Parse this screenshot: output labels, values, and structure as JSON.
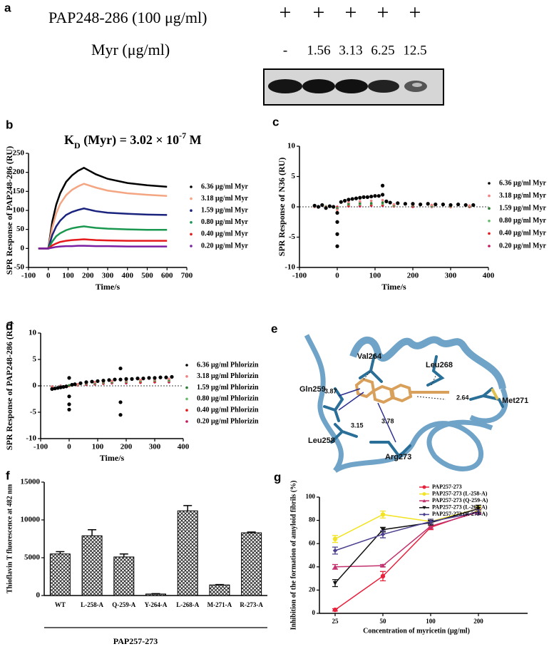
{
  "panel_a": {
    "label": "a",
    "rows": [
      {
        "label": "PAP248-286 (100 μg/ml)",
        "cells": [
          "+",
          "+",
          "+",
          "+",
          "+"
        ]
      },
      {
        "label": "Myr (μg/ml)",
        "cells": [
          "-",
          1.56,
          3.13,
          6.25,
          12.5
        ]
      }
    ]
  },
  "panel_e": {
    "label": "e",
    "residues": [
      "Val264",
      "Leu268",
      "Gln259",
      "Met271",
      "Leu258",
      "Arg273"
    ],
    "distances": [
      3.87,
      3.15,
      3.78,
      2.64
    ]
  },
  "chart_data": [
    {
      "type": "line",
      "label": "b",
      "title": {
        "k": "K",
        "sub": "D",
        "mid": " (Myr) = 3.02 × 10",
        "sup": "-7",
        "end": " M"
      },
      "x_label": "Time/s",
      "y_label": "SPR Response of PAP248-286 (RU)",
      "xlim": [
        -100,
        700
      ],
      "xticks": [
        -100,
        0,
        100,
        200,
        300,
        400,
        500,
        600,
        700
      ],
      "ylim": [
        -50,
        250
      ],
      "yticks": [
        -50,
        0,
        50,
        100,
        150,
        200,
        250
      ],
      "x": [
        -50,
        0,
        20,
        40,
        60,
        90,
        120,
        150,
        180,
        240,
        300,
        400,
        500,
        600
      ],
      "series": [
        {
          "name": "6.36 μg/ml Myr",
          "color": "#000000",
          "values": [
            0,
            0,
            70,
            115,
            145,
            175,
            192,
            204,
            212,
            195,
            183,
            172,
            166,
            162
          ]
        },
        {
          "name": "3.18 μg/ml Myr",
          "color": "#f4a582",
          "values": [
            0,
            0,
            55,
            92,
            117,
            140,
            154,
            163,
            170,
            160,
            152,
            145,
            141,
            138
          ]
        },
        {
          "name": "1.59 μg/ml Myr",
          "color": "#1a237e",
          "values": [
            0,
            0,
            35,
            58,
            73,
            88,
            96,
            101,
            105,
            98,
            94,
            91,
            89,
            88
          ]
        },
        {
          "name": "0.80 μg/ml Myr",
          "color": "#1a9850",
          "values": [
            0,
            0,
            18,
            32,
            40,
            48,
            53,
            56,
            58,
            54,
            52,
            50,
            49,
            49
          ]
        },
        {
          "name": "0.40 μg/ml Myr",
          "color": "#e41a1c",
          "values": [
            0,
            0,
            8,
            13,
            17,
            20,
            22,
            23,
            24,
            22,
            21,
            20,
            20,
            20
          ]
        },
        {
          "name": "0.20 μg/ml Myr",
          "color": "#7b1fa2",
          "values": [
            0,
            0,
            2,
            4,
            5,
            6,
            6,
            7,
            7,
            6,
            6,
            5,
            5,
            5
          ]
        }
      ]
    },
    {
      "type": "scatter",
      "label": "c",
      "zero_line": true,
      "x_label": "Time/s",
      "y_label": "SPR Response of N36 (RU)",
      "xlim": [
        -100,
        400
      ],
      "xticks": [
        -100,
        0,
        100,
        200,
        300,
        400
      ],
      "ylim": [
        -10,
        10
      ],
      "yticks": [
        -10,
        -5,
        0,
        5,
        10
      ],
      "series": [
        {
          "name": "6.36 μg/ml Myr",
          "color": "#000000",
          "x": [
            -60,
            -50,
            -40,
            -30,
            -20,
            -10,
            0,
            0,
            0,
            0,
            10,
            20,
            30,
            40,
            50,
            60,
            70,
            80,
            90,
            100,
            110,
            120,
            120,
            130,
            140,
            160,
            180,
            200,
            220,
            240,
            260,
            280,
            300,
            320,
            340,
            360
          ],
          "values": [
            0.2,
            0,
            0.3,
            -0.2,
            0.1,
            0,
            -1,
            -2.5,
            -4.5,
            -6.5,
            0.8,
            1,
            1.2,
            1.3,
            1.4,
            1.5,
            1.6,
            1.6,
            1.7,
            1.8,
            1.8,
            2,
            3.5,
            0.9,
            0.7,
            0.6,
            0.5,
            0.5,
            0.4,
            0.5,
            0.4,
            0.4,
            0.3,
            0.4,
            0.3,
            0.3
          ]
        },
        {
          "name": "3.18 μg/ml Myr",
          "color": "#f08080",
          "x": [
            -60,
            -30,
            0,
            30,
            60,
            90,
            120,
            150,
            200,
            250,
            300,
            350
          ],
          "values": [
            0,
            0,
            -0.5,
            0.8,
            0.9,
            1,
            1.1,
            0.4,
            0.3,
            0.3,
            0.2,
            0.2
          ]
        },
        {
          "name": "1.59 μg/ml Myr",
          "color": "#2e7d32",
          "x": [
            -60,
            -30,
            0,
            30,
            60,
            90,
            120,
            150,
            200,
            250,
            300,
            350
          ],
          "values": [
            0,
            0,
            -0.3,
            0.5,
            0.6,
            0.6,
            0.7,
            0.3,
            0.2,
            0.2,
            0.2,
            0.1
          ]
        },
        {
          "name": "0.80 μg/ml Myr",
          "color": "#66bb6a",
          "x": [
            -60,
            -30,
            0,
            30,
            60,
            90,
            120,
            150,
            200,
            250,
            300,
            350
          ],
          "values": [
            0,
            0.1,
            -0.2,
            0.4,
            0.4,
            0.5,
            0.5,
            0.2,
            0.2,
            0.1,
            0.1,
            0.1
          ]
        },
        {
          "name": "0.40 μg/ml Myr",
          "color": "#e41a1c",
          "x": [
            -60,
            -30,
            0,
            30,
            60,
            90,
            120,
            150,
            200,
            250,
            300,
            350
          ],
          "values": [
            0,
            0,
            -0.1,
            0.2,
            0.3,
            0.3,
            0.3,
            0.1,
            0.1,
            0.1,
            0,
            0
          ]
        },
        {
          "name": "0.20 μg/ml Myr",
          "color": "#c2185b",
          "x": [
            -60,
            -30,
            0,
            30,
            60,
            90,
            120,
            150,
            200,
            250,
            300,
            350
          ],
          "values": [
            0,
            0,
            0,
            0.1,
            0.1,
            0.2,
            0.2,
            0.1,
            0,
            0,
            0,
            0
          ]
        }
      ]
    },
    {
      "type": "scatter",
      "label": "d",
      "zero_line": true,
      "x_label": "Time/s",
      "y_label": "SPR Response of PAP248-286 (RU)",
      "xlim": [
        -100,
        400
      ],
      "xticks": [
        -100,
        0,
        100,
        200,
        300,
        400
      ],
      "ylim": [
        -10,
        10
      ],
      "yticks": [
        -10,
        -5,
        0,
        5,
        10
      ],
      "series": [
        {
          "name": "6.36 μg/ml Phlorizin",
          "color": "#000000",
          "x": [
            -60,
            -50,
            -40,
            -30,
            -20,
            -10,
            0,
            0,
            0,
            0,
            10,
            20,
            40,
            60,
            80,
            100,
            120,
            140,
            160,
            180,
            180,
            180,
            180,
            200,
            220,
            240,
            260,
            280,
            300,
            320,
            340,
            360
          ],
          "values": [
            -0.6,
            -0.5,
            -0.4,
            -0.3,
            -0.2,
            -0.1,
            1.5,
            -2,
            -3.5,
            -4.5,
            0.2,
            0.3,
            0.5,
            0.7,
            0.8,
            0.9,
            1,
            1.1,
            1.2,
            1.2,
            3.3,
            -3.1,
            -5.5,
            1.3,
            1.3,
            1.4,
            1.4,
            1.5,
            1.5,
            1.6,
            1.6,
            1.7
          ]
        },
        {
          "name": "3.18 μg/ml Phlorizin",
          "color": "#f08080",
          "x": [
            -60,
            -30,
            0,
            30,
            60,
            90,
            120,
            150,
            200,
            250,
            300,
            350
          ],
          "values": [
            -0.3,
            -0.2,
            1.5,
            0.3,
            0.5,
            0.7,
            0.8,
            0.9,
            1,
            1.1,
            1.2,
            1.3
          ]
        },
        {
          "name": "1.59 μg/ml Phlorizin",
          "color": "#2e7d32",
          "x": [
            -60,
            -30,
            0,
            30,
            60,
            90,
            120,
            150,
            200,
            250,
            300,
            350
          ],
          "values": [
            -0.4,
            -0.2,
            0.1,
            0.3,
            0.4,
            0.6,
            0.7,
            0.8,
            0.9,
            1,
            1.1,
            1.2
          ]
        },
        {
          "name": "0.80 μg/ml Phlorizin",
          "color": "#66bb6a",
          "x": [
            -60,
            -30,
            0,
            30,
            60,
            90,
            120,
            150,
            200,
            250,
            300,
            350
          ],
          "values": [
            -0.3,
            -0.1,
            0.1,
            0.2,
            0.4,
            0.5,
            0.6,
            0.7,
            0.8,
            0.9,
            1,
            1
          ]
        },
        {
          "name": "0.40 μg/ml Phlorizin",
          "color": "#e41a1c",
          "x": [
            -60,
            -30,
            0,
            30,
            60,
            90,
            120,
            150,
            200,
            250,
            300,
            350
          ],
          "values": [
            -0.2,
            -0.1,
            0,
            0.2,
            0.3,
            0.4,
            0.5,
            0.6,
            0.7,
            0.7,
            0.8,
            0.9
          ]
        },
        {
          "name": "0.20 μg/ml Phlorizin",
          "color": "#c2185b",
          "x": [
            -60,
            -30,
            0,
            30,
            60,
            90,
            120,
            150,
            200,
            250,
            300,
            350
          ],
          "values": [
            -0.2,
            0,
            0,
            0.1,
            0.2,
            0.3,
            0.4,
            0.5,
            0.5,
            0.6,
            0.7,
            0.7
          ]
        }
      ]
    },
    {
      "type": "bar",
      "label": "f",
      "x_label": "PAP257-273",
      "y_label": "Thioflavin T fluorescence at 482 nm",
      "categories": [
        "WT",
        "L-258-A",
        "Q-259-A",
        "Y-264-A",
        "L-268-A",
        "M-271-A",
        "R-273-A"
      ],
      "values": [
        5500,
        7900,
        5100,
        200,
        11200,
        1400,
        8300
      ],
      "errors": [
        300,
        800,
        400,
        50,
        700,
        50,
        100
      ],
      "ylim": [
        0,
        15000
      ],
      "yticks": [
        0,
        5000,
        10000,
        15000
      ]
    },
    {
      "type": "errorline",
      "label": "g",
      "x_label": "Concentration of myricetin (μg/ml)",
      "y_label": "Inhibition of the formation of amyloid fibrils (%)",
      "categories": [
        "25",
        "50",
        "100",
        "200"
      ],
      "ylim": [
        0,
        100
      ],
      "yticks": [
        0,
        20,
        40,
        60,
        80,
        100
      ],
      "series": [
        {
          "name": "PAP257-273",
          "color": "#e8213c",
          "marker": "circle",
          "values": [
            3,
            32,
            74,
            88
          ],
          "errors": [
            1,
            4,
            2,
            2
          ]
        },
        {
          "name": "PAP257-273  (L-258-A)",
          "color": "#f2e424",
          "marker": "circle",
          "values": [
            64,
            85,
            79,
            90
          ],
          "errors": [
            3,
            3,
            2,
            2
          ]
        },
        {
          "name": "PAP257-273  (Q-259-A)",
          "color": "#c2306e",
          "marker": "triangle-up",
          "values": [
            40,
            41,
            75,
            87
          ],
          "errors": [
            2,
            1,
            2,
            2
          ]
        },
        {
          "name": "PAP257-273  (L-268-A)",
          "color": "#111111",
          "marker": "triangle-down",
          "values": [
            26,
            72,
            78,
            90
          ],
          "errors": [
            3,
            2,
            2,
            3
          ]
        },
        {
          "name": "PAP257-273  (R-273-A)",
          "color": "#4b3f8f",
          "marker": "diamond",
          "values": [
            54,
            68,
            79,
            87
          ],
          "errors": [
            3,
            3,
            2,
            2
          ]
        }
      ]
    }
  ]
}
